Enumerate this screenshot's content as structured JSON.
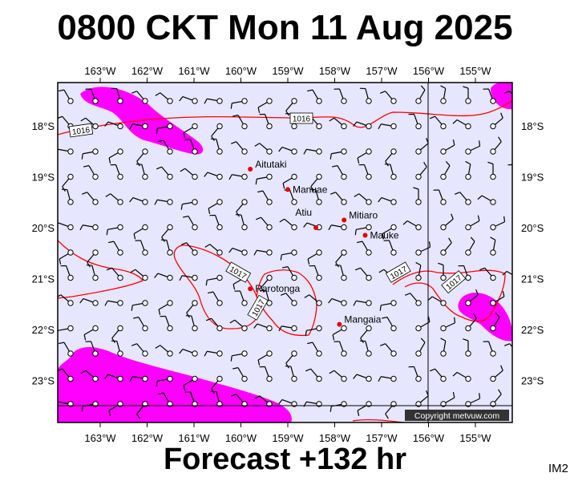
{
  "title": "0800 CKT Mon 11 Aug 2025",
  "subtitle": "Forecast +132 hr",
  "code": "IM2",
  "copyright": "Copyright metvuw.com",
  "colors": {
    "sea": "#e6e6ff",
    "rain": "#ff00ff",
    "isobar": "#ff0000",
    "frame": "#000000"
  },
  "lon_labels": [
    "163°W",
    "162°W",
    "161°W",
    "160°W",
    "159°W",
    "158°W",
    "157°W",
    "156°W",
    "155°W"
  ],
  "lat_labels": [
    "18°S",
    "19°S",
    "20°S",
    "21°S",
    "22°S",
    "23°S"
  ],
  "islands": [
    {
      "name": "Aitutaki",
      "lon": -159.8,
      "lat": -18.85
    },
    {
      "name": "Manuae",
      "lon": -159.0,
      "lat": -19.25
    },
    {
      "name": "Atiu",
      "lon": -158.4,
      "lat": -20.0
    },
    {
      "name": "Mitiaro",
      "lon": -157.8,
      "lat": -19.85
    },
    {
      "name": "Mauke",
      "lon": -157.35,
      "lat": -20.15
    },
    {
      "name": "Rarotonga",
      "lon": -159.8,
      "lat": -21.2
    },
    {
      "name": "Mangaia",
      "lon": -157.9,
      "lat": -21.9
    }
  ],
  "isobar_labels": [
    "1016",
    "1016",
    "1017",
    "1017",
    "1017",
    "1017"
  ]
}
